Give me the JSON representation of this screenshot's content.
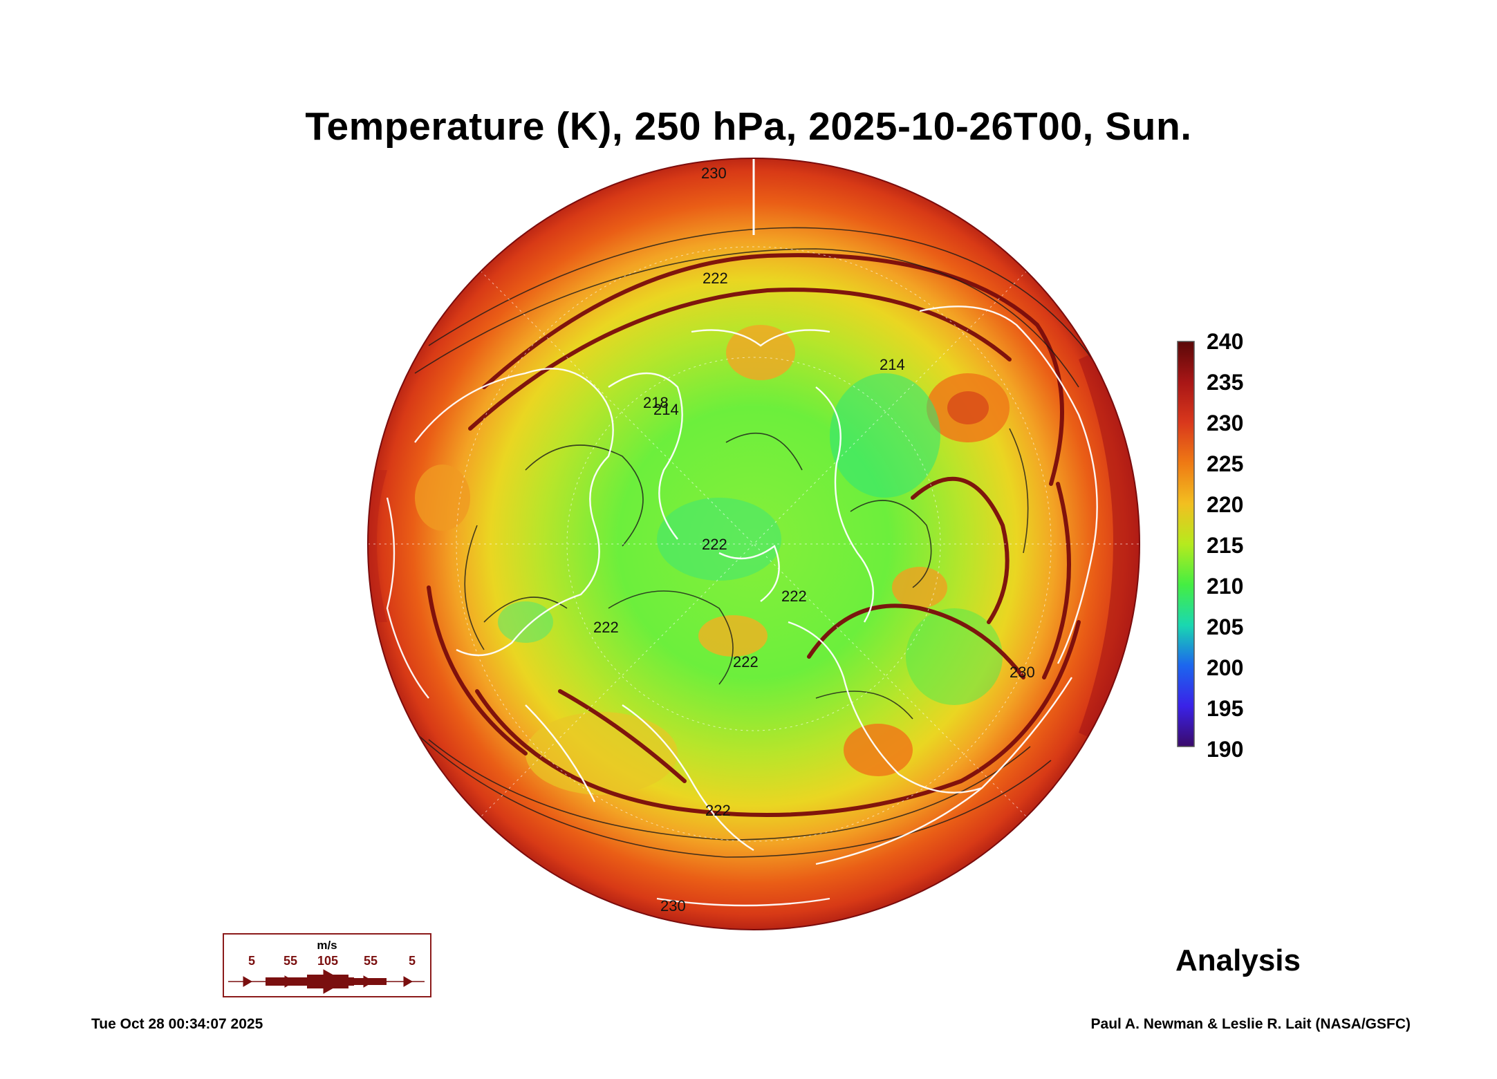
{
  "title": "Temperature (K), 250 hPa, 2025-10-26T00, Sun.",
  "colorbar": {
    "labels": [
      "240",
      "235",
      "230",
      "225",
      "220",
      "215",
      "210",
      "205",
      "200",
      "195",
      "190"
    ],
    "colors": [
      "#6b0b0b",
      "#9c1414",
      "#cc2f1a",
      "#e86a12",
      "#f0a020",
      "#cfe31d",
      "#5cf03a",
      "#1fe0a0",
      "#1a7ef0",
      "#3a2af0",
      "#4a1080"
    ]
  },
  "wind_legend": {
    "unit": "m/s",
    "values": [
      "5",
      "55",
      "105",
      "55",
      "5"
    ]
  },
  "contour_labels": [
    "230",
    "230",
    "222",
    "214",
    "218",
    "222",
    "222",
    "222",
    "214",
    "222",
    "222",
    "230"
  ],
  "analysis_label": "Analysis",
  "footer": {
    "timestamp": "Tue Oct 28 00:34:07 2025",
    "credit": "Paul A. Newman & Leslie R. Lait (NASA/GSFC)"
  }
}
